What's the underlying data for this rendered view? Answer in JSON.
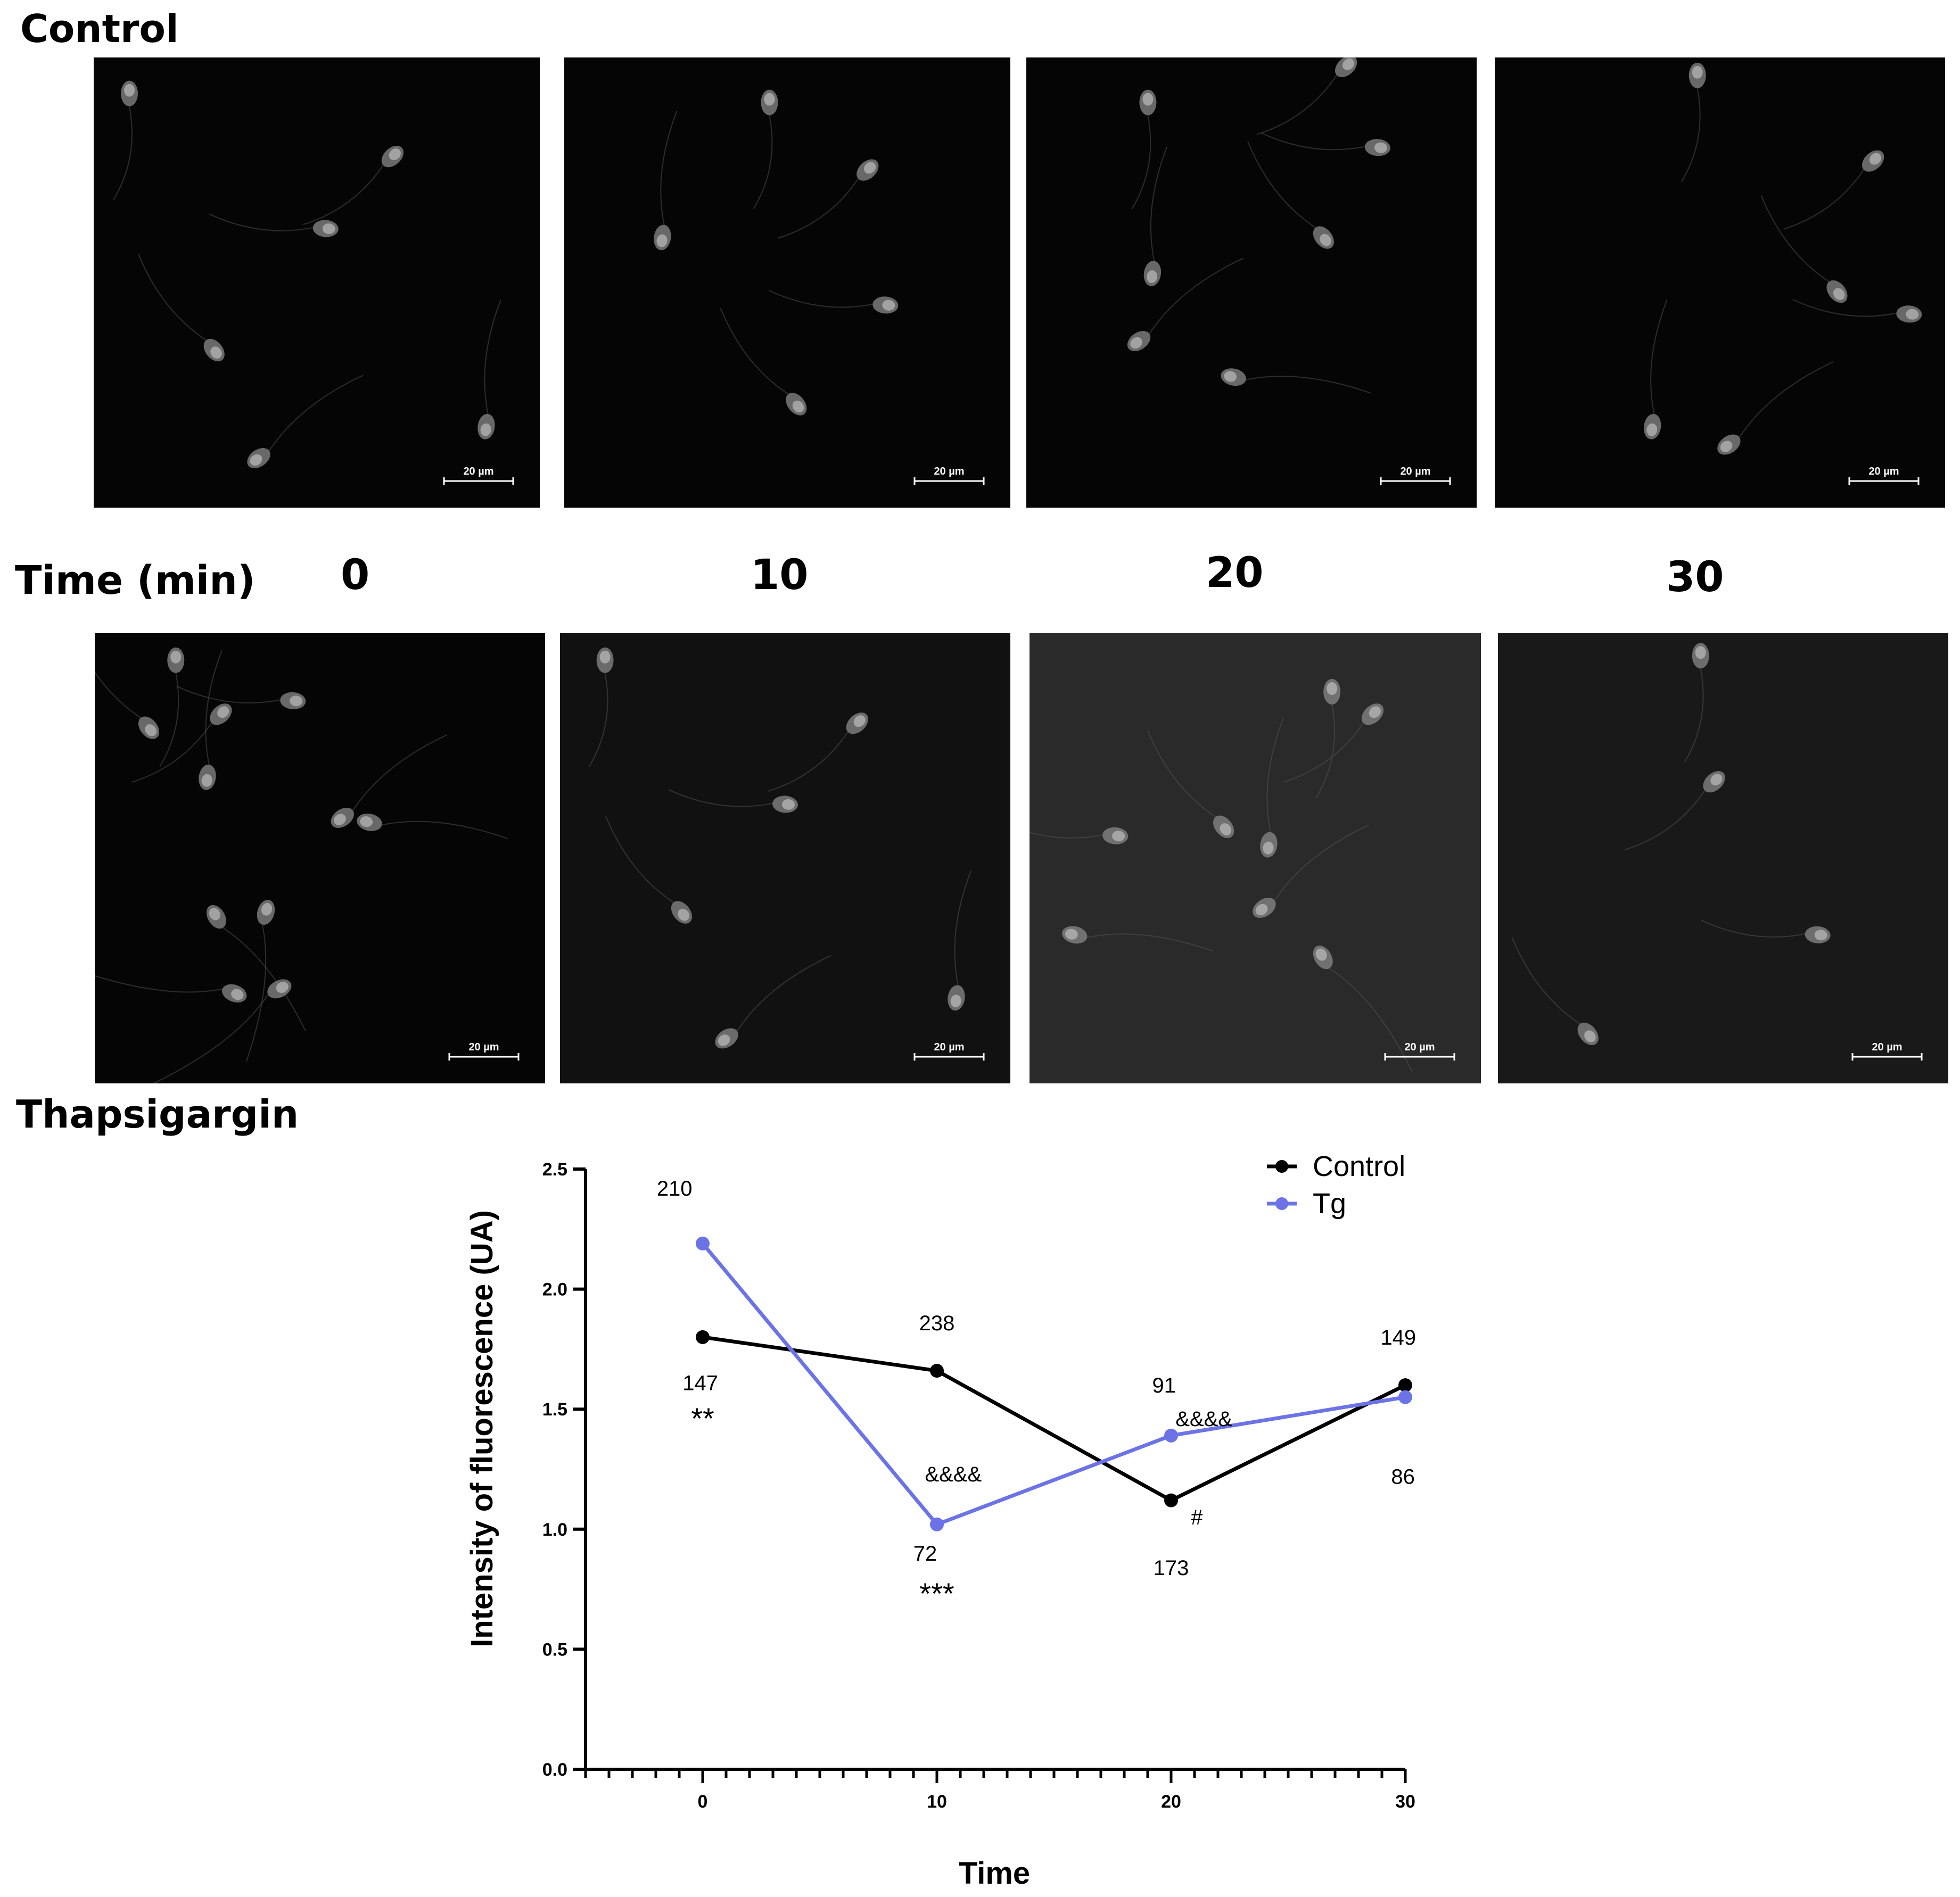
{
  "labels": {
    "control_group": "Control",
    "time_axis": "Time (min)",
    "treatment_group": "Thapsigargin",
    "times": [
      "0",
      "10",
      "20",
      "30"
    ]
  },
  "scale_bar_text": "20 µm",
  "panels_top": [
    {
      "time": "0"
    },
    {
      "time": "10"
    },
    {
      "time": "20"
    },
    {
      "time": "30"
    }
  ],
  "panels_bottom": [
    {
      "time": "0"
    },
    {
      "time": "10"
    },
    {
      "time": "20"
    },
    {
      "time": "30"
    }
  ],
  "chart_data": {
    "type": "line",
    "xlabel": "Time",
    "ylabel": "Intensity of fluorescence (UA)",
    "xlim": [
      -5,
      30
    ],
    "ylim": [
      0,
      2.5
    ],
    "x_ticks": [
      0,
      10,
      20,
      30
    ],
    "y_ticks": [
      "0.0",
      "0.5",
      "1.0",
      "1.5",
      "2.0",
      "2.5"
    ],
    "legend_position": "top-right",
    "grid": false,
    "series": [
      {
        "name": "Control",
        "color": "#000000",
        "x": [
          0,
          10,
          20,
          30
        ],
        "y": [
          1.8,
          1.66,
          1.12,
          1.6
        ]
      },
      {
        "name": "Tg",
        "color": "#6b73e6",
        "x": [
          0,
          10,
          20,
          30
        ],
        "y": [
          2.19,
          1.02,
          1.39,
          1.55
        ]
      }
    ],
    "annotations": [
      {
        "text": "210",
        "x": -1.2,
        "y": 2.42
      },
      {
        "text": "147",
        "x": -0.1,
        "y": 1.61
      },
      {
        "text": "**",
        "x": 0,
        "y": 1.45
      },
      {
        "text": "238",
        "x": 0.2,
        "y": 1.86,
        "ref": 10
      },
      {
        "text": "&&&&",
        "x": 10.7,
        "y": 1.23
      },
      {
        "text": "72",
        "x": 9.5,
        "y": 0.9
      },
      {
        "text": "***",
        "x": 10,
        "y": 0.72
      },
      {
        "text": "91",
        "x": 19.7,
        "y": 1.6
      },
      {
        "text": "&&&&",
        "x": 21.4,
        "y": 1.46
      },
      {
        "text": "#",
        "x": 21.1,
        "y": 1.05
      },
      {
        "text": "173",
        "x": 20,
        "y": 0.84
      },
      {
        "text": "149",
        "x": 29.7,
        "y": 1.8
      },
      {
        "text": "86",
        "x": 29.9,
        "y": 1.22
      }
    ]
  }
}
